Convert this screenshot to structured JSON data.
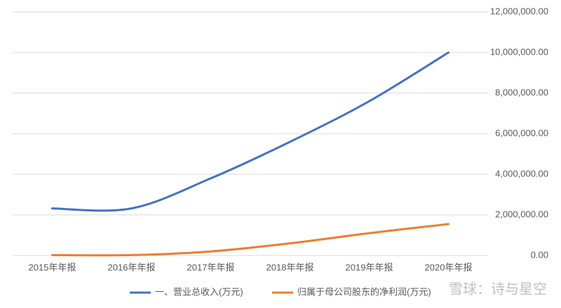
{
  "chart_data": {
    "type": "line",
    "categories": [
      "2015年年报",
      "2016年年报",
      "2017年年报",
      "2018年年报",
      "2019年年报",
      "2020年年报"
    ],
    "series": [
      {
        "name": "一、营业总收入(万元)",
        "color": "#4472c4",
        "values": [
          2320000,
          2320000,
          3800000,
          5600000,
          7600000,
          10000000
        ]
      },
      {
        "name": "归属于母公司股东的净利润(万元)",
        "color": "#ed7d31",
        "values": [
          20000,
          20000,
          200000,
          600000,
          1100000,
          1550000
        ]
      }
    ],
    "ylim": [
      0,
      12000000
    ],
    "yticks": [
      {
        "value": 0,
        "label": "0.00"
      },
      {
        "value": 2000000,
        "label": "2,000,000.00"
      },
      {
        "value": 4000000,
        "label": "4,000,000.00"
      },
      {
        "value": 6000000,
        "label": "6,000,000.00"
      },
      {
        "value": 8000000,
        "label": "8,000,000.00"
      },
      {
        "value": 10000000,
        "label": "10,000,000.00"
      },
      {
        "value": 12000000,
        "label": "12,000,000.00"
      }
    ],
    "y_axis_side": "right",
    "grid": true,
    "legend": "bottom",
    "watermark": "雪球：诗与星空"
  }
}
